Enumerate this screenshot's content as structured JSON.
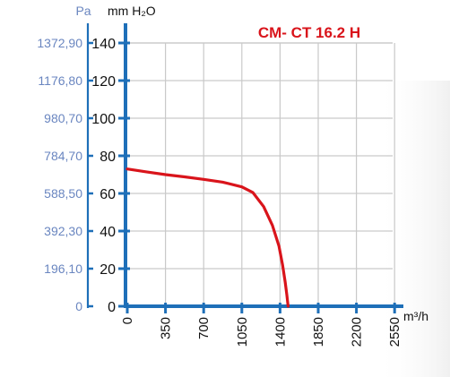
{
  "chart_data": {
    "type": "line",
    "title": "CM- CT 16.2 H",
    "x_unit": "m³/h",
    "y_unit_primary": "mm H₂O",
    "y_unit_secondary": "Pa",
    "x_ticks": [
      0,
      350,
      700,
      1050,
      1400,
      1850,
      2200,
      2550
    ],
    "y_ticks": [
      0,
      20,
      40,
      60,
      80,
      100,
      120,
      140
    ],
    "pa_tick_labels": [
      "0",
      "196,10",
      "392,30",
      "588,50",
      "784,70",
      "980,70",
      "1176,80",
      "1372,90"
    ],
    "xlim": [
      0,
      2550
    ],
    "ylim": [
      0,
      140
    ],
    "grid": true,
    "series": [
      {
        "x": [
          0,
          175,
          350,
          525,
          700,
          875,
          1050,
          1150,
          1250,
          1330,
          1390,
          1430,
          1460,
          1480,
          1495
        ],
        "y": [
          73,
          71.5,
          70,
          68.8,
          67.5,
          66,
          63.5,
          60.5,
          53,
          43,
          32,
          22,
          13,
          6,
          0
        ]
      }
    ],
    "colors": {
      "series": "#d9141b",
      "axis": "#1e6fb8",
      "pa_labels": "#6a86c0",
      "title": "#d9141b",
      "grid": "#c9c9c9",
      "text": "#111111"
    }
  }
}
